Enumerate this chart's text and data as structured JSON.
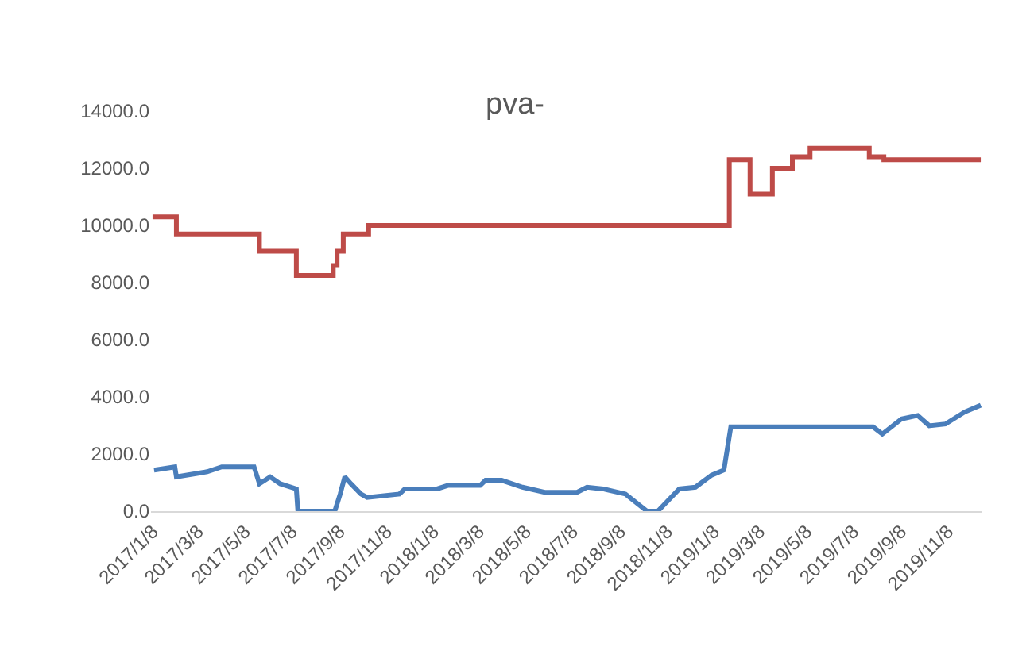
{
  "chart_data": {
    "type": "line",
    "title": "pva-",
    "grid": false,
    "marker": "none",
    "line_style": "solid",
    "xlim": [
      "2017-01-06",
      "2019-12-23"
    ],
    "ylim": [
      0,
      14000
    ],
    "yticks": [
      {
        "value": 0,
        "label": "0.0"
      },
      {
        "value": 2000,
        "label": "2000.0"
      },
      {
        "value": 4000,
        "label": "4000.0"
      },
      {
        "value": 6000,
        "label": "6000.0"
      },
      {
        "value": 8000,
        "label": "8000.0"
      },
      {
        "value": 10000,
        "label": "10000.0"
      },
      {
        "value": 12000,
        "label": "12000.0"
      },
      {
        "value": 14000,
        "label": "14000.0"
      }
    ],
    "xticks": [
      {
        "value": "2017-01-08",
        "label": "2017/1/8"
      },
      {
        "value": "2017-03-08",
        "label": "2017/3/8"
      },
      {
        "value": "2017-05-08",
        "label": "2017/5/8"
      },
      {
        "value": "2017-07-08",
        "label": "2017/7/8"
      },
      {
        "value": "2017-09-08",
        "label": "2017/9/8"
      },
      {
        "value": "2017-11-08",
        "label": "2017/11/8"
      },
      {
        "value": "2018-01-08",
        "label": "2018/1/8"
      },
      {
        "value": "2018-03-08",
        "label": "2018/3/8"
      },
      {
        "value": "2018-05-08",
        "label": "2018/5/8"
      },
      {
        "value": "2018-07-08",
        "label": "2018/7/8"
      },
      {
        "value": "2018-09-08",
        "label": "2018/9/8"
      },
      {
        "value": "2018-11-08",
        "label": "2018/11/8"
      },
      {
        "value": "2019-01-08",
        "label": "2019/1/8"
      },
      {
        "value": "2019-03-08",
        "label": "2019/3/8"
      },
      {
        "value": "2019-05-08",
        "label": "2019/5/8"
      },
      {
        "value": "2019-07-08",
        "label": "2019/7/8"
      },
      {
        "value": "2019-09-08",
        "label": "2019/9/8"
      },
      {
        "value": "2019-11-08",
        "label": "2019/11/8"
      }
    ],
    "series": [
      {
        "color": "#4a7ebb",
        "x": [
          "2017-01-10",
          "2017-02-06",
          "2017-02-08",
          "2017-03-20",
          "2017-04-08",
          "2017-05-20",
          "2017-05-27",
          "2017-06-10",
          "2017-06-23",
          "2017-07-14",
          "2017-07-16",
          "2017-09-02",
          "2017-09-09",
          "2017-09-15",
          "2017-09-23",
          "2017-10-06",
          "2017-10-14",
          "2017-11-25",
          "2017-12-02",
          "2018-01-13",
          "2018-01-27",
          "2018-03-10",
          "2018-03-17",
          "2018-04-07",
          "2018-05-04",
          "2018-06-02",
          "2018-07-14",
          "2018-07-27",
          "2018-08-17",
          "2018-09-15",
          "2018-10-13",
          "2018-10-27",
          "2018-11-24",
          "2018-12-15",
          "2019-01-05",
          "2019-01-21",
          "2019-01-30",
          "2019-08-03",
          "2019-08-15",
          "2019-09-09",
          "2019-09-30",
          "2019-10-15",
          "2019-11-05",
          "2019-11-30",
          "2019-12-21"
        ],
        "values": [
          1440,
          1550,
          1200,
          1380,
          1550,
          1550,
          960,
          1200,
          960,
          780,
          0,
          0,
          600,
          1200,
          960,
          600,
          480,
          600,
          780,
          780,
          900,
          900,
          1080,
          1080,
          840,
          660,
          660,
          840,
          780,
          600,
          0,
          0,
          780,
          840,
          1260,
          1440,
          2950,
          2950,
          2700,
          3230,
          3350,
          2990,
          3050,
          3470,
          3710
        ]
      },
      {
        "type": "step",
        "color": "#be4b48",
        "x": [
          "2017-01-08",
          "2017-02-08",
          "2017-05-27",
          "2017-07-14",
          "2017-08-31",
          "2017-09-05",
          "2017-09-13",
          "2017-10-16",
          "2019-01-28",
          "2019-02-24",
          "2019-03-25",
          "2019-04-20",
          "2019-05-13",
          "2019-07-29",
          "2019-08-17",
          "2019-12-21"
        ],
        "values": [
          10300,
          9700,
          9100,
          8250,
          8600,
          9100,
          9700,
          10000,
          12300,
          11100,
          12000,
          12400,
          12700,
          12400,
          12300,
          12300
        ]
      }
    ]
  }
}
